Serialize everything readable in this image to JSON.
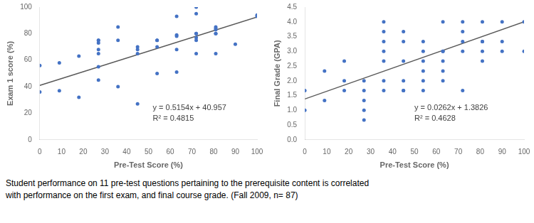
{
  "chart_data": [
    {
      "type": "scatter",
      "xlabel": "Pre-Test Score (%)",
      "ylabel": "Exam 1 score (%)",
      "xlim": [
        0,
        100
      ],
      "ylim": [
        0,
        100
      ],
      "xticks": [
        0,
        10,
        20,
        30,
        40,
        50,
        60,
        70,
        80,
        90,
        100
      ],
      "yticks": [
        0,
        20,
        40,
        60,
        80,
        100
      ],
      "grid": false,
      "series": [
        {
          "type": "scatter",
          "color": "#4472C4",
          "x": [
            0,
            0,
            9,
            9,
            18,
            18,
            27,
            27,
            27,
            27,
            27,
            27,
            27,
            36,
            36,
            36,
            45,
            45,
            45,
            45,
            54,
            54,
            54,
            54,
            63,
            63,
            63,
            63,
            63,
            72,
            72,
            72,
            72,
            72,
            72,
            72,
            81,
            81,
            81,
            81,
            81,
            81,
            90,
            100,
            100
          ],
          "values": [
            56,
            36,
            58,
            37,
            63,
            32,
            55,
            75,
            75,
            73,
            68,
            65,
            45,
            85,
            75,
            40,
            70,
            68,
            65,
            27,
            75,
            75,
            70,
            50,
            93,
            79,
            78,
            68,
            51,
            100,
            95,
            80,
            80,
            77,
            75,
            65,
            85,
            84,
            83,
            80,
            80,
            65,
            72,
            93,
            94
          ]
        },
        {
          "type": "line",
          "color": "#595959",
          "x": [
            0,
            100
          ],
          "values": [
            40.957,
            92.497
          ]
        }
      ],
      "annotations": [
        "y = 0.5154x + 40.957",
        "R² = 0.4815"
      ]
    },
    {
      "type": "scatter",
      "xlabel": "Pre-Test Score (%)",
      "ylabel": "Final Grade (GPA)",
      "xlim": [
        0,
        100
      ],
      "ylim": [
        0,
        4.5
      ],
      "xticks": [
        0,
        10,
        20,
        30,
        40,
        50,
        60,
        70,
        80,
        90,
        100
      ],
      "yticks": [
        {
          "value": 0,
          "label": "0.0"
        },
        0.5,
        {
          "value": 1,
          "label": "1.0"
        },
        1.5,
        {
          "value": 2,
          "label": "2.0"
        },
        2.5,
        {
          "value": 3,
          "label": "3.0"
        },
        3.5,
        {
          "value": 4,
          "label": "4.0"
        },
        4.5
      ],
      "grid": false,
      "series": [
        {
          "type": "scatter",
          "color": "#4472C4",
          "x": [
            0,
            0,
            9,
            9,
            18,
            18,
            18,
            27,
            27,
            27,
            27,
            27,
            36,
            36,
            36,
            36,
            36,
            36,
            36,
            45,
            45,
            45,
            45,
            45,
            45,
            54,
            54,
            54,
            54,
            54,
            54,
            63,
            63,
            63,
            63,
            63,
            63,
            72,
            72,
            72,
            72,
            72,
            81,
            81,
            81,
            81,
            81,
            90,
            90,
            90,
            100,
            100
          ],
          "values": [
            1.0,
            1.67,
            2.33,
            1.33,
            2.67,
            2.0,
            1.67,
            2.0,
            1.67,
            1.33,
            1.0,
            0.67,
            4.0,
            3.67,
            3.33,
            3.0,
            2.67,
            2.0,
            1.67,
            3.67,
            3.33,
            2.67,
            2.0,
            1.67,
            1.67,
            3.33,
            3.0,
            2.67,
            2.33,
            2.0,
            1.67,
            4.0,
            3.0,
            3.0,
            2.67,
            2.33,
            2.0,
            4.0,
            3.67,
            3.33,
            3.0,
            1.67,
            4.0,
            3.33,
            3.33,
            3.0,
            2.67,
            4.0,
            3.33,
            3.0,
            4.0,
            3.0
          ]
        },
        {
          "type": "line",
          "color": "#595959",
          "x": [
            0,
            100
          ],
          "values": [
            1.3826,
            4.0026
          ]
        }
      ],
      "annotations": [
        "y = 0.0262x + 1.3826",
        "R² = 0.4628"
      ]
    }
  ],
  "caption": [
    "Student performance on 11 pre-test questions pertaining to the prerequisite content is correlated",
    "with performance on the first exam, and final course grade. (Fall 2009, n= 87)"
  ]
}
